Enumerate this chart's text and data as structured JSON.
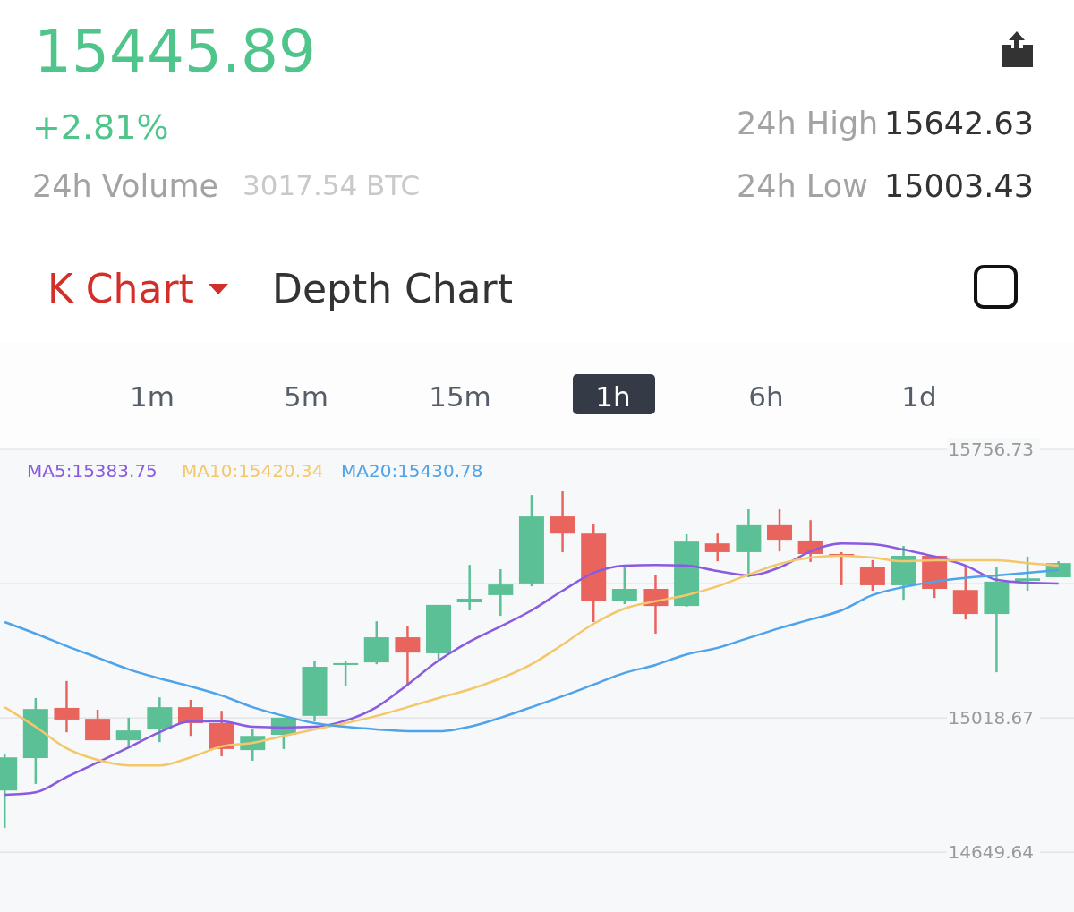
{
  "chart_data": {
    "type": "candlestick",
    "title": "15445.89",
    "subtitle": "+2.81%",
    "categories": [
      null,
      null,
      null,
      null,
      null,
      null,
      null,
      null,
      null,
      null,
      null,
      null,
      null,
      null,
      null,
      null,
      null,
      null,
      null,
      null,
      null,
      null,
      null,
      null,
      null,
      null,
      null,
      null,
      null,
      null,
      null,
      null,
      null,
      null,
      null
    ],
    "ohlc": [
      [
        14819,
        14918,
        14716,
        14910
      ],
      [
        14908,
        15073,
        14837,
        15043
      ],
      [
        15046,
        15120,
        14979,
        15014
      ],
      [
        15016,
        15041,
        14957,
        14957
      ],
      [
        14957,
        15019,
        14942,
        14984
      ],
      [
        14987,
        15075,
        14952,
        15048
      ],
      [
        15048,
        15068,
        14969,
        15004
      ],
      [
        15004,
        15038,
        14913,
        14933
      ],
      [
        14930,
        14987,
        14901,
        14969
      ],
      [
        14972,
        15019,
        14933,
        15019
      ],
      [
        15024,
        15174,
        15009,
        15159
      ],
      [
        15164,
        15176,
        15107,
        15169
      ],
      [
        15171,
        15284,
        15166,
        15240
      ],
      [
        15240,
        15270,
        15107,
        15198
      ],
      [
        15196,
        15329,
        15179,
        15329
      ],
      [
        15336,
        15439,
        15314,
        15346
      ],
      [
        15356,
        15427,
        15299,
        15385
      ],
      [
        15388,
        15631,
        15380,
        15572
      ],
      [
        15572,
        15641,
        15474,
        15525
      ],
      [
        15525,
        15550,
        15282,
        15339
      ],
      [
        15339,
        15434,
        15331,
        15373
      ],
      [
        15373,
        15410,
        15250,
        15326
      ],
      [
        15326,
        15523,
        15324,
        15503
      ],
      [
        15498,
        15525,
        15449,
        15474
      ],
      [
        15474,
        15592,
        15405,
        15548
      ],
      [
        15548,
        15592,
        15476,
        15508
      ],
      [
        15506,
        15562,
        15447,
        15469
      ],
      [
        15469,
        15474,
        15383,
        15464
      ],
      [
        15432,
        15452,
        15368,
        15383
      ],
      [
        15383,
        15491,
        15343,
        15464
      ],
      [
        15464,
        15464,
        15348,
        15373
      ],
      [
        15370,
        15439,
        15289,
        15304
      ],
      [
        15304,
        15432,
        15144,
        15393
      ],
      [
        15395,
        15462,
        15368,
        15402
      ],
      [
        15405,
        15449,
        15405,
        15444
      ]
    ],
    "series": [
      {
        "name": "MA5:15383.75",
        "type": "line",
        "color": "#8a5ae0",
        "values": [
          14807,
          14814,
          14856,
          14896,
          14937,
          14979,
          15009,
          15009,
          14994,
          14992,
          14994,
          15011,
          15048,
          15110,
          15176,
          15228,
          15270,
          15314,
          15368,
          15417,
          15437,
          15439,
          15437,
          15422,
          15410,
          15432,
          15476,
          15498,
          15496,
          15481,
          15462,
          15437,
          15398,
          15390,
          15388
        ]
      },
      {
        "name": "MA10:15420.34",
        "type": "line",
        "color": "#f5c76b",
        "values": [
          15048,
          14994,
          14935,
          14903,
          14888,
          14888,
          14910,
          14940,
          14950,
          14969,
          14987,
          15004,
          15024,
          15048,
          15073,
          15097,
          15127,
          15166,
          15220,
          15277,
          15319,
          15339,
          15356,
          15380,
          15412,
          15442,
          15459,
          15464,
          15459,
          15449,
          15452,
          15452,
          15452,
          15444,
          15437
        ]
      },
      {
        "name": "MA20:15430.78",
        "type": "line",
        "color": "#4ea3ea",
        "values": [
          15282,
          15250,
          15216,
          15184,
          15152,
          15127,
          15105,
          15080,
          15048,
          15024,
          15004,
          14994,
          14987,
          14982,
          14982,
          14994,
          15019,
          15048,
          15078,
          15110,
          15142,
          15164,
          15193,
          15211,
          15238,
          15265,
          15289,
          15314,
          15356,
          15378,
          15393,
          15403,
          15410,
          15417,
          15425
        ]
      }
    ],
    "ylim": [
      14485,
      15756.73
    ],
    "yticks": [
      15756.73,
      {
        "value": 15387.7,
        "label": null
      },
      15018.67,
      14649.64
    ],
    "grid": "y",
    "legend": "top left",
    "tick_labels": "y",
    "marker": "none",
    "line_style": "solid",
    "annotations": [
      "24h High",
      "15642.63",
      "24h Volume",
      "3017.54 BTC",
      "24h Low",
      "15003.43",
      "K Chart",
      "Depth Chart",
      "1m",
      "5m",
      "15m",
      "1h",
      "6h",
      "1d"
    ]
  }
}
